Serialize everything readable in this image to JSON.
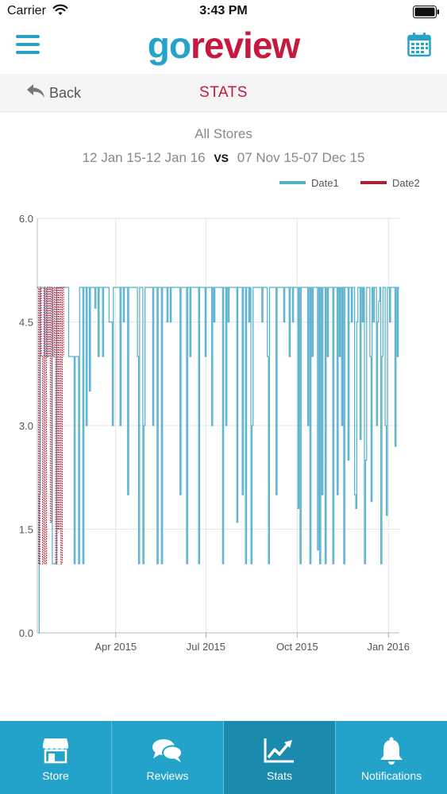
{
  "status_bar": {
    "carrier": "Carrier",
    "time": "3:43 PM"
  },
  "app": {
    "logo_go": "go",
    "logo_review": "review"
  },
  "nav": {
    "back_label": "Back",
    "title": "STATS"
  },
  "filter": {
    "stores": "All Stores",
    "range1": "12 Jan 15-12 Jan 16",
    "vs": "VS",
    "range2": "07 Nov 15-07 Dec 15"
  },
  "tabs": [
    {
      "label": "Store",
      "icon": "store-icon"
    },
    {
      "label": "Reviews",
      "icon": "chat-bubbles-icon"
    },
    {
      "label": "Stats",
      "icon": "line-chart-icon",
      "active": true
    },
    {
      "label": "Notifications",
      "icon": "bell-icon"
    }
  ],
  "colors": {
    "brand_blue": "#26a3c9",
    "brand_red": "#c8183d",
    "date1": "#52afcd",
    "date2": "#b01d37",
    "tab_active": "#1a8bac"
  },
  "chart_data": {
    "type": "line",
    "ylim": [
      0,
      6
    ],
    "y_ticks": [
      "0.0",
      "1.5",
      "3.0",
      "4.5",
      "6.0"
    ],
    "x_ticks": [
      "Apr 2015",
      "Jul 2015",
      "Oct 2015",
      "Jan 2016"
    ],
    "x_range": [
      "2015-01-12",
      "2016-01-12"
    ],
    "grid": true,
    "legend_position": "top-right",
    "series": [
      {
        "name": "Date1",
        "color": "#52afcd",
        "style": "solid",
        "values": [
          0,
          2.0,
          5,
          5,
          5,
          5,
          4.0,
          4,
          5,
          5,
          5,
          5,
          5,
          1,
          1,
          1,
          1,
          5,
          5,
          5,
          5,
          5,
          5,
          5,
          5,
          5,
          5,
          5,
          4,
          4,
          4,
          4,
          4,
          1,
          4,
          4,
          4,
          1,
          5,
          5,
          5,
          1,
          5,
          5,
          3,
          5,
          5,
          3.5,
          5,
          5,
          5,
          5,
          4.7,
          5,
          5,
          4,
          5,
          5,
          5,
          4,
          5,
          5,
          5,
          5,
          5,
          4.5,
          4.5,
          4.5,
          3,
          5,
          5,
          5,
          5,
          5,
          5,
          3,
          5,
          5,
          4.5,
          5,
          5,
          5,
          2,
          5,
          5,
          5,
          5,
          5,
          5,
          5,
          5,
          4,
          1,
          5,
          5,
          5,
          1,
          3,
          5,
          5,
          5,
          5,
          5,
          5,
          5,
          3,
          5,
          5,
          5,
          1,
          5,
          5,
          5,
          1,
          5,
          5,
          5,
          5,
          4.5,
          5,
          5,
          4.5,
          5,
          5,
          5,
          5,
          5,
          5,
          5,
          5,
          2,
          5,
          5,
          5,
          5,
          5,
          1,
          5,
          5,
          4,
          5,
          5,
          5,
          5,
          5,
          5,
          5,
          1,
          5,
          5,
          5,
          5,
          5,
          4,
          5,
          5,
          5,
          5,
          5,
          3,
          5,
          4.5,
          5,
          5,
          5,
          5,
          5,
          5,
          5,
          1,
          5,
          5,
          3,
          5,
          4.5,
          5,
          5,
          5,
          5,
          5,
          5,
          5,
          1.6,
          5,
          5,
          5,
          5,
          2,
          5,
          5,
          1,
          5,
          5,
          4.5,
          5,
          1,
          3,
          5,
          5,
          5,
          5,
          5,
          5,
          5,
          5,
          4.5,
          5,
          5,
          5,
          5,
          4,
          1,
          5,
          5,
          5,
          5,
          5,
          5,
          2,
          5,
          5,
          5,
          5,
          5,
          5,
          4.5,
          5,
          5,
          5,
          5,
          4,
          5,
          5,
          4.5,
          5,
          5,
          5,
          5,
          1.8,
          5,
          1,
          5,
          5,
          5,
          5,
          5,
          5,
          3,
          5,
          1,
          5,
          4,
          5,
          5,
          5,
          5,
          1.2,
          5,
          1,
          5,
          2,
          5,
          5,
          1,
          5,
          4,
          5,
          5,
          5,
          5,
          1,
          5,
          5,
          5,
          2,
          5,
          4,
          5,
          3,
          5,
          1,
          5,
          5,
          5,
          2.5,
          5,
          5,
          4.5,
          5,
          5,
          2,
          1.8,
          4.5,
          5,
          5,
          2.8,
          5,
          4.5,
          5,
          1,
          2.5,
          5,
          5,
          5,
          4,
          1.9,
          5,
          4.5,
          5,
          5,
          3,
          4.5,
          4.8,
          5,
          1,
          4,
          5,
          5,
          3,
          1.7,
          5,
          5,
          4.5,
          5,
          5,
          5,
          5,
          2.7,
          5,
          4,
          5,
          5
        ]
      },
      {
        "name": "Date2",
        "color": "#b01d37",
        "style": "dotted",
        "values": [
          5,
          1,
          5,
          4,
          1,
          5,
          1,
          5,
          4,
          5,
          1.6,
          5,
          4,
          5,
          1,
          5,
          1.5,
          5,
          1,
          5,
          4
        ]
      }
    ]
  }
}
